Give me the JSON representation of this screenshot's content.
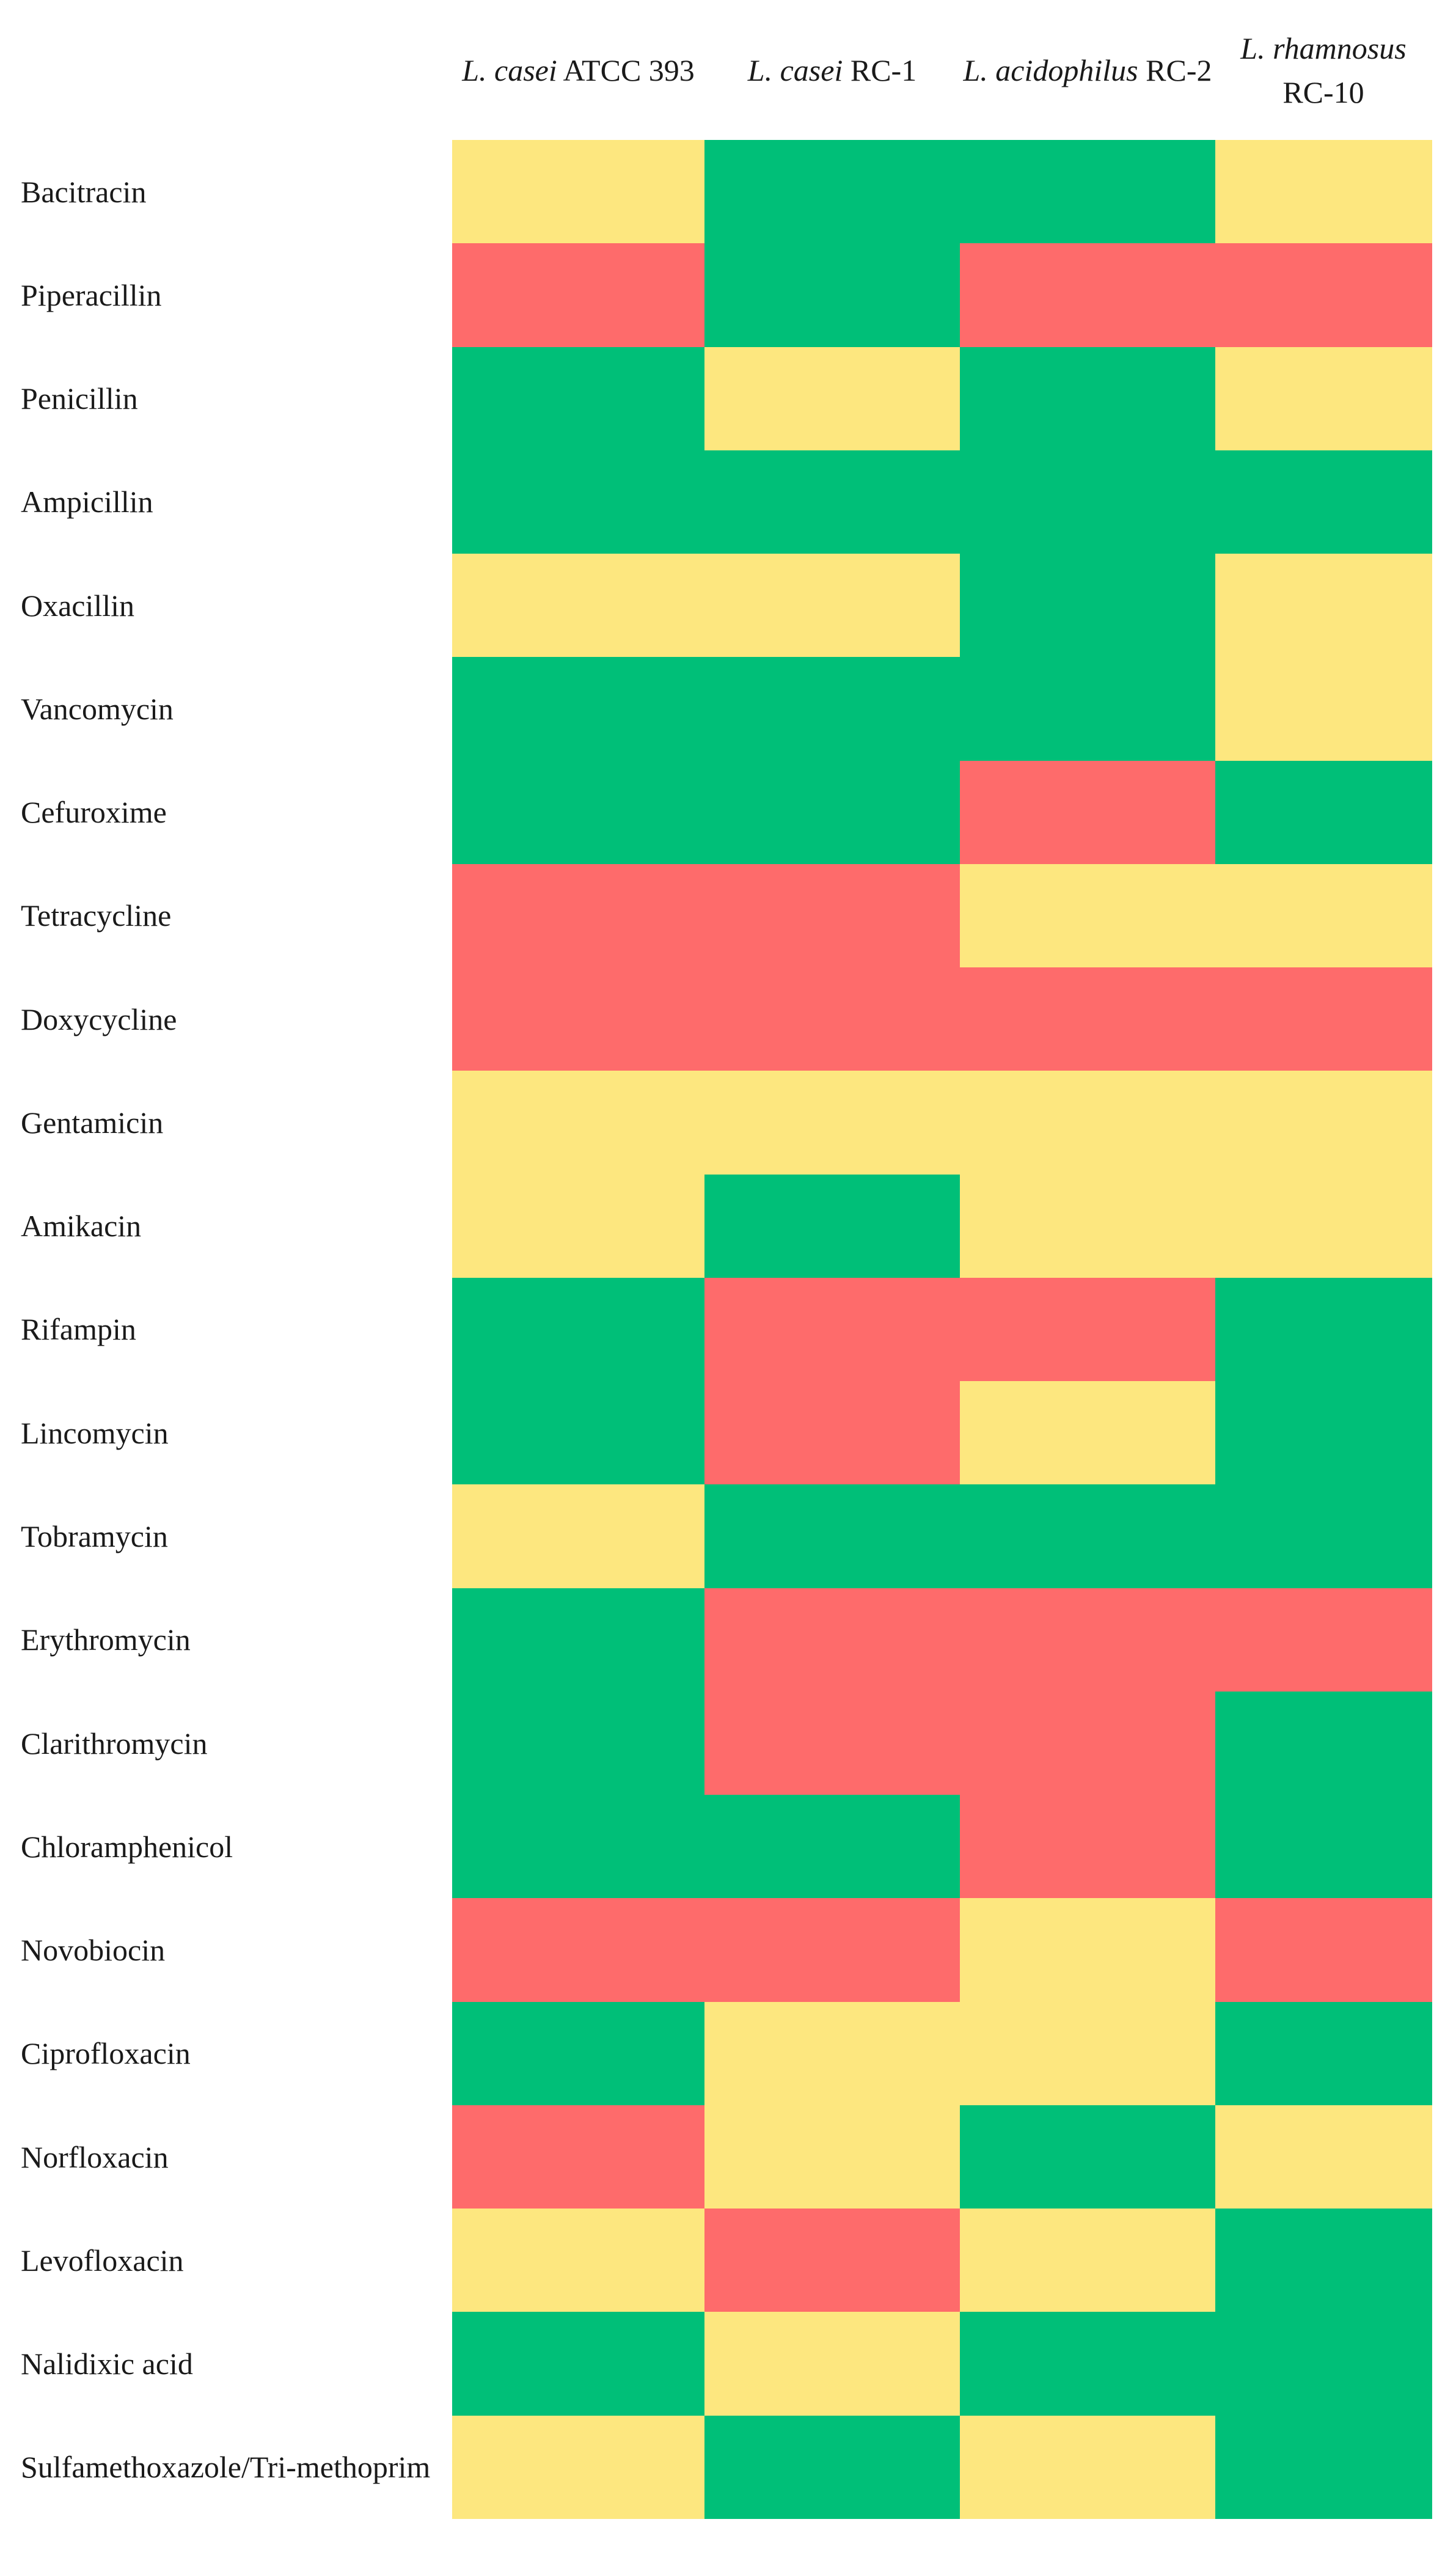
{
  "chart_data": {
    "type": "heatmap",
    "columns": [
      {
        "species": "L. casei",
        "strain": "ATCC 393"
      },
      {
        "species": "L. casei",
        "strain": "RC-1"
      },
      {
        "species": "L. acidophilus",
        "strain": "RC-2"
      },
      {
        "species": "L. rhamnosus",
        "strain": "RC-10"
      }
    ],
    "rows": [
      "Bacitracin",
      "Piperacillin",
      "Penicillin",
      "Ampicillin",
      "Oxacillin",
      "Vancomycin",
      "Cefuroxime",
      "Tetracycline",
      "Doxycycline",
      "Gentamicin",
      "Amikacin",
      "Rifampin",
      "Lincomycin",
      "Tobramycin",
      "Erythromycin",
      "Clarithromycin",
      "Chloramphenicol",
      "Novobiocin",
      "Ciprofloxacin",
      "Norfloxacin",
      "Levofloxacin",
      "Nalidixic acid",
      "Sulfamethoxazole/Tri-methoprim"
    ],
    "cells": [
      [
        "#fde77f",
        "#00bf78",
        "#00bf78",
        "#fde77f"
      ],
      [
        "#fe6b6b",
        "#00bf78",
        "#fe6b6b",
        "#fe6b6b"
      ],
      [
        "#00bf78",
        "#fde77f",
        "#00bf78",
        "#fde77f"
      ],
      [
        "#00bf78",
        "#00bf78",
        "#00bf78",
        "#00bf78"
      ],
      [
        "#fde77f",
        "#fde77f",
        "#00bf78",
        "#fde77f"
      ],
      [
        "#00bf78",
        "#00bf78",
        "#00bf78",
        "#fde77f"
      ],
      [
        "#00bf78",
        "#00bf78",
        "#fe6b6b",
        "#00bf78"
      ],
      [
        "#fe6b6b",
        "#fe6b6b",
        "#fde77f",
        "#fde77f"
      ],
      [
        "#fe6b6b",
        "#fe6b6b",
        "#fe6b6b",
        "#fe6b6b"
      ],
      [
        "#fde77f",
        "#fde77f",
        "#fde77f",
        "#fde77f"
      ],
      [
        "#fde77f",
        "#00bf78",
        "#fde77f",
        "#fde77f"
      ],
      [
        "#00bf78",
        "#fe6b6b",
        "#fe6b6b",
        "#00bf78"
      ],
      [
        "#00bf78",
        "#fe6b6b",
        "#fde77f",
        "#00bf78"
      ],
      [
        "#fde77f",
        "#00bf78",
        "#00bf78",
        "#00bf78"
      ],
      [
        "#00bf78",
        "#fe6b6b",
        "#fe6b6b",
        "#fe6b6b"
      ],
      [
        "#00bf78",
        "#fe6b6b",
        "#fe6b6b",
        "#00bf78"
      ],
      [
        "#00bf78",
        "#00bf78",
        "#fe6b6b",
        "#00bf78"
      ],
      [
        "#fe6b6b",
        "#fe6b6b",
        "#fde77f",
        "#fe6b6b"
      ],
      [
        "#00bf78",
        "#fde77f",
        "#fde77f",
        "#00bf78"
      ],
      [
        "#fe6b6b",
        "#fde77f",
        "#00bf78",
        "#fde77f"
      ],
      [
        "#fde77f",
        "#fe6b6b",
        "#fde77f",
        "#00bf78"
      ],
      [
        "#00bf78",
        "#fde77f",
        "#00bf78",
        "#00bf78"
      ],
      [
        "#fde77f",
        "#00bf78",
        "#fde77f",
        "#00bf78"
      ]
    ]
  }
}
